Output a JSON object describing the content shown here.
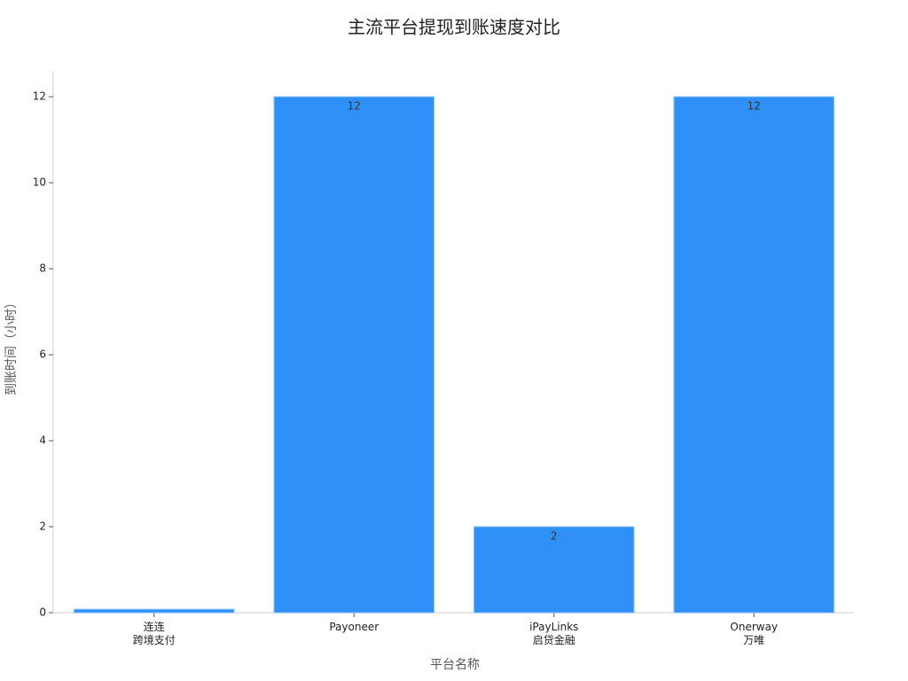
{
  "chart_data": {
    "type": "bar",
    "title": "主流平台提现到账速度对比",
    "x_label": "平台名称",
    "y_label": "到账时间（小时）",
    "categories": [
      "连连\n跨境支付",
      "Payoneer",
      "iPayLinks\n启贷金融",
      "Onerway\n万唯"
    ],
    "values": [
      0.08,
      12,
      2,
      12
    ],
    "value_labels": [
      null,
      "12",
      "2",
      "12"
    ],
    "color": "#2f91f7",
    "ylim": [
      0,
      12.6
    ],
    "yticks": [
      0,
      2,
      4,
      6,
      8,
      10,
      12
    ],
    "grid": false
  }
}
